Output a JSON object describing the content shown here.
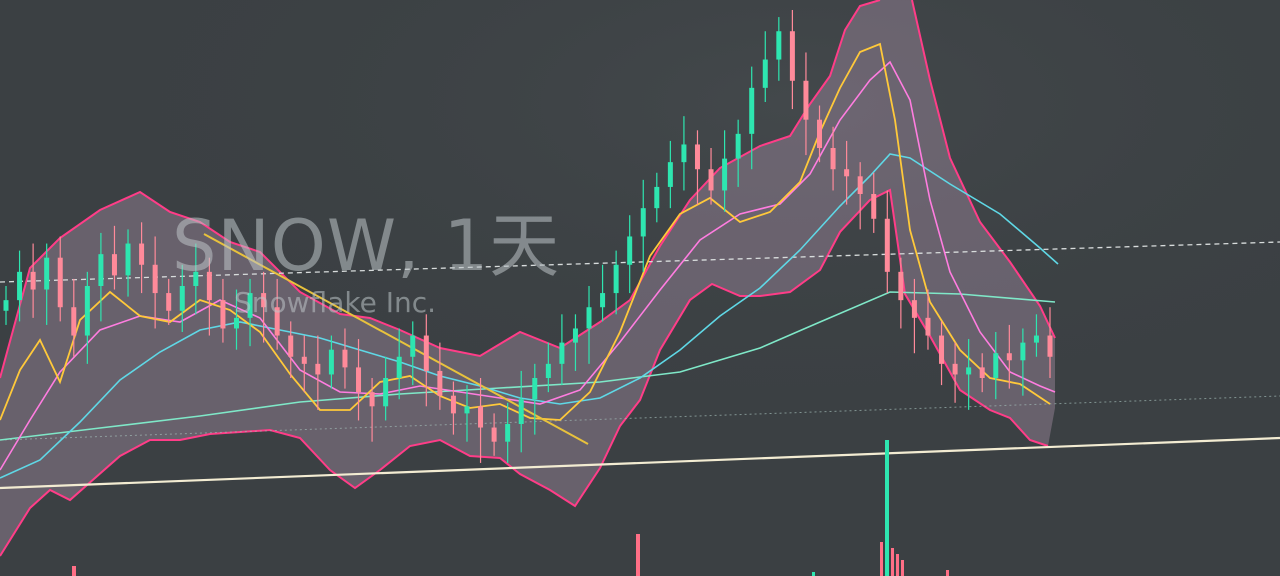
{
  "watermark": {
    "symbol_interval": "SNOW, 1天",
    "company_name": "Snowflake Inc."
  },
  "colors": {
    "background": "#3b4043",
    "band_fill": "#a88ea7",
    "bollinger_upper_lower": "#ff3d88",
    "bollinger_mid": "#ff7de0",
    "ma_fast": "#ffc93a",
    "ma_mid": "#5fd8e6",
    "ma_slow": "#7fe8c8",
    "trendline_down": "#e8c23c",
    "trendline_support": "#f3ecd2",
    "dashed_level": "#d8dcdc",
    "candle_up": "#2ee6b0",
    "candle_down": "#ff8a9a",
    "volume_up": "#2ee6b0",
    "volume_down": "#ff6f86"
  },
  "chart_data": {
    "type": "candlestick",
    "interval": "1天",
    "close_series": [
      168,
      176,
      171,
      180,
      166,
      158,
      172,
      181,
      175,
      184,
      178,
      170,
      165,
      172,
      176,
      168,
      160,
      163,
      170,
      166,
      158,
      152,
      150,
      147,
      154,
      149,
      142,
      138,
      146,
      152,
      158,
      148,
      141,
      136,
      138,
      132,
      128,
      133,
      140,
      146,
      150,
      156,
      160,
      166,
      170,
      178,
      186,
      194,
      200,
      207,
      212,
      205,
      199,
      208,
      215,
      228,
      236,
      244,
      230,
      219,
      211,
      205,
      203,
      198,
      191,
      176,
      168,
      163,
      158,
      150,
      147,
      149,
      146,
      153,
      151,
      156,
      158,
      152
    ],
    "indicators": [
      "Bollinger Bands (upper/lower)",
      "Bollinger Bands (middle)",
      "Moving average (fast)",
      "Moving average (medium)",
      "Moving average (slow)"
    ],
    "drawings": [
      "descending trendline",
      "ascending support line",
      "dashed horizontal level",
      "horizontal level"
    ],
    "volume_panel": true,
    "grid": false,
    "legend": "none"
  }
}
